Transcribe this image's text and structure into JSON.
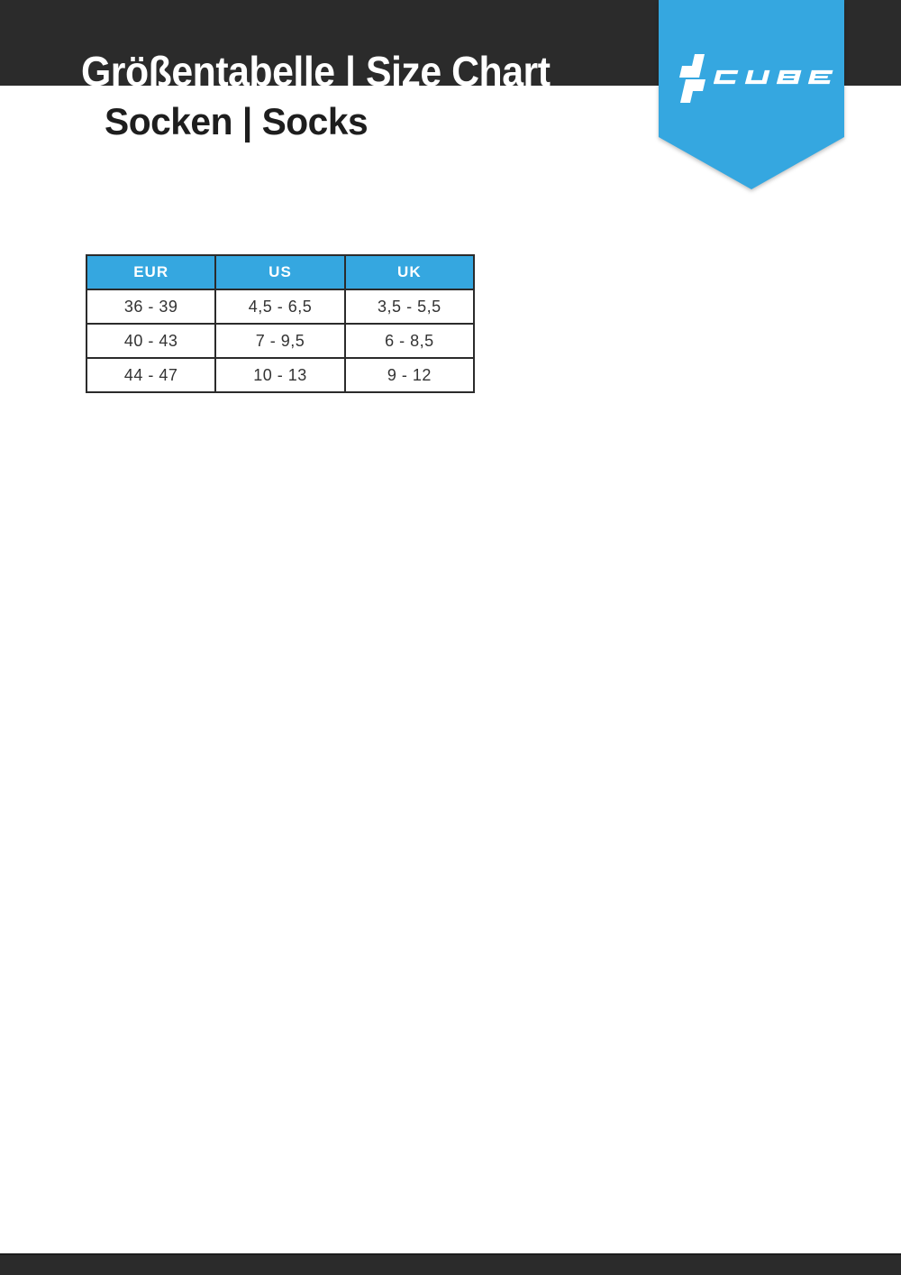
{
  "page": {
    "title": "Größentabelle | Size Chart",
    "subtitle": "Socken | Socks"
  },
  "brand": {
    "name": "CUBE",
    "accent_color": "#35a7e0",
    "bar_color": "#2b2b2b",
    "logo_icon": "cube-steps-icon"
  },
  "size_chart": {
    "columns": [
      "EUR",
      "US",
      "UK"
    ],
    "rows": [
      [
        "36 - 39",
        "4,5 - 6,5",
        "3,5 - 5,5"
      ],
      [
        "40 - 43",
        "7 - 9,5",
        "6 - 8,5"
      ],
      [
        "44 - 47",
        "10 - 13",
        "9 - 12"
      ]
    ]
  }
}
